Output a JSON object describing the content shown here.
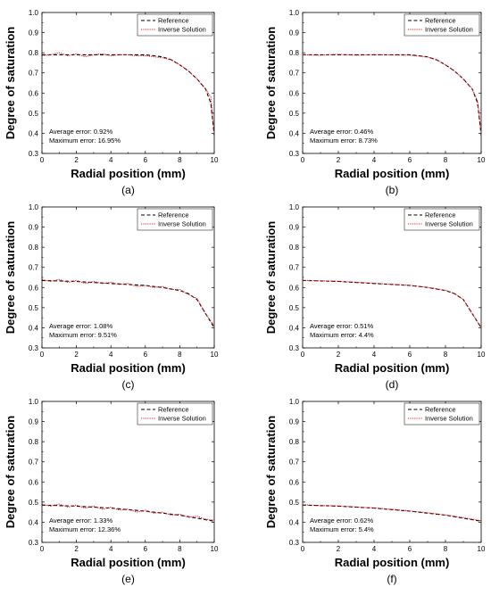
{
  "chart_data": [
    {
      "type": "line",
      "caption": "(a)",
      "xlabel": "Radial position (mm)",
      "ylabel": "Degree of saturation",
      "xlim": [
        0,
        10
      ],
      "ylim": [
        0.3,
        1.0
      ],
      "xticks": [
        0,
        2,
        4,
        6,
        8,
        10
      ],
      "yticks": [
        0.3,
        0.4,
        0.5,
        0.6,
        0.7,
        0.8,
        0.9,
        1.0
      ],
      "legend": {
        "position": "top-right",
        "entries": [
          "Reference",
          "Inverse Solution"
        ]
      },
      "annotations": [
        "Average error: 0.92%",
        "Maximum error: 16.95%"
      ],
      "series": [
        {
          "name": "Reference",
          "color": "#000000",
          "style": "dashed",
          "x": [
            0,
            2,
            4,
            6,
            6.5,
            7,
            7.5,
            8,
            8.5,
            9,
            9.5,
            9.8,
            10
          ],
          "y": [
            0.79,
            0.79,
            0.79,
            0.79,
            0.785,
            0.78,
            0.765,
            0.74,
            0.71,
            0.67,
            0.62,
            0.55,
            0.39
          ]
        },
        {
          "name": "Inverse Solution",
          "color": "#e8191a",
          "style": "dotted",
          "x": [
            0,
            0.5,
            1,
            1.5,
            2,
            2.5,
            3,
            3.5,
            4,
            4.5,
            5,
            5.5,
            6,
            6.5,
            7,
            7.5,
            8,
            8.5,
            9,
            9.5,
            9.8,
            10
          ],
          "y": [
            0.785,
            0.79,
            0.8,
            0.785,
            0.795,
            0.78,
            0.79,
            0.795,
            0.785,
            0.79,
            0.79,
            0.785,
            0.785,
            0.78,
            0.775,
            0.765,
            0.74,
            0.71,
            0.67,
            0.62,
            0.58,
            0.4
          ]
        }
      ]
    },
    {
      "type": "line",
      "caption": "(b)",
      "xlabel": "Radial position (mm)",
      "ylabel": "Degree of saturation",
      "xlim": [
        0,
        10
      ],
      "ylim": [
        0.3,
        1.0
      ],
      "xticks": [
        0,
        2,
        4,
        6,
        8,
        10
      ],
      "yticks": [
        0.3,
        0.4,
        0.5,
        0.6,
        0.7,
        0.8,
        0.9,
        1.0
      ],
      "legend": {
        "position": "top-right",
        "entries": [
          "Reference",
          "Inverse Solution"
        ]
      },
      "annotations": [
        "Average error: 0.46%",
        "Maximum error: 8.73%"
      ],
      "series": [
        {
          "name": "Reference",
          "color": "#000000",
          "style": "dashed",
          "x": [
            0,
            2,
            4,
            6,
            6.5,
            7,
            7.5,
            8,
            8.5,
            9,
            9.5,
            9.8,
            10
          ],
          "y": [
            0.79,
            0.79,
            0.79,
            0.79,
            0.785,
            0.78,
            0.765,
            0.74,
            0.71,
            0.67,
            0.62,
            0.55,
            0.39
          ]
        },
        {
          "name": "Inverse Solution",
          "color": "#e8191a",
          "style": "dotted",
          "x": [
            0,
            1,
            2,
            3,
            4,
            5,
            6,
            6.5,
            7,
            7.5,
            8,
            8.5,
            9,
            9.5,
            9.8,
            10
          ],
          "y": [
            0.79,
            0.788,
            0.792,
            0.788,
            0.79,
            0.789,
            0.788,
            0.784,
            0.778,
            0.765,
            0.74,
            0.71,
            0.67,
            0.62,
            0.56,
            0.4
          ]
        }
      ]
    },
    {
      "type": "line",
      "caption": "(c)",
      "xlabel": "Radial position (mm)",
      "ylabel": "Degree of saturation",
      "xlim": [
        0,
        10
      ],
      "ylim": [
        0.3,
        1.0
      ],
      "xticks": [
        0,
        2,
        4,
        6,
        8,
        10
      ],
      "yticks": [
        0.3,
        0.4,
        0.5,
        0.6,
        0.7,
        0.8,
        0.9,
        1.0
      ],
      "legend": {
        "position": "top-right",
        "entries": [
          "Reference",
          "Inverse Solution"
        ]
      },
      "annotations": [
        "Average error: 1.08%",
        "Maximum error: 9.51%"
      ],
      "series": [
        {
          "name": "Reference",
          "color": "#000000",
          "style": "dashed",
          "x": [
            0,
            2,
            4,
            6,
            7,
            8,
            8.5,
            9,
            9.5,
            10
          ],
          "y": [
            0.635,
            0.63,
            0.62,
            0.61,
            0.6,
            0.585,
            0.57,
            0.54,
            0.47,
            0.4
          ]
        },
        {
          "name": "Inverse Solution",
          "color": "#e8191a",
          "style": "dotted",
          "x": [
            0,
            0.5,
            1,
            1.5,
            2,
            2.5,
            3,
            3.5,
            4,
            4.5,
            5,
            5.5,
            6,
            6.5,
            7,
            7.5,
            8,
            8.5,
            9,
            9.5,
            10
          ],
          "y": [
            0.64,
            0.63,
            0.64,
            0.625,
            0.635,
            0.62,
            0.63,
            0.62,
            0.625,
            0.615,
            0.62,
            0.605,
            0.61,
            0.6,
            0.605,
            0.59,
            0.59,
            0.565,
            0.545,
            0.47,
            0.41
          ]
        }
      ]
    },
    {
      "type": "line",
      "caption": "(d)",
      "xlabel": "Radial position (mm)",
      "ylabel": "Degree of saturation",
      "xlim": [
        0,
        10
      ],
      "ylim": [
        0.3,
        1.0
      ],
      "xticks": [
        0,
        2,
        4,
        6,
        8,
        10
      ],
      "yticks": [
        0.3,
        0.4,
        0.5,
        0.6,
        0.7,
        0.8,
        0.9,
        1.0
      ],
      "legend": {
        "position": "top-right",
        "entries": [
          "Reference",
          "Inverse Solution"
        ]
      },
      "annotations": [
        "Average error: 0.51%",
        "Maximum error: 4.4%"
      ],
      "series": [
        {
          "name": "Reference",
          "color": "#000000",
          "style": "dashed",
          "x": [
            0,
            2,
            4,
            6,
            7,
            8,
            8.5,
            9,
            9.5,
            10
          ],
          "y": [
            0.635,
            0.63,
            0.62,
            0.61,
            0.6,
            0.585,
            0.57,
            0.54,
            0.47,
            0.4
          ]
        },
        {
          "name": "Inverse Solution",
          "color": "#e8191a",
          "style": "dotted",
          "x": [
            0,
            1,
            2,
            3,
            4,
            5,
            6,
            7,
            8,
            8.5,
            9,
            9.5,
            10
          ],
          "y": [
            0.636,
            0.633,
            0.631,
            0.626,
            0.621,
            0.616,
            0.611,
            0.601,
            0.586,
            0.57,
            0.54,
            0.47,
            0.402
          ]
        }
      ]
    },
    {
      "type": "line",
      "caption": "(e)",
      "xlabel": "Radial position (mm)",
      "ylabel": "Degree of saturation",
      "xlim": [
        0,
        10
      ],
      "ylim": [
        0.3,
        1.0
      ],
      "xticks": [
        0,
        2,
        4,
        6,
        8,
        10
      ],
      "yticks": [
        0.3,
        0.4,
        0.5,
        0.6,
        0.7,
        0.8,
        0.9,
        1.0
      ],
      "legend": {
        "position": "top-right",
        "entries": [
          "Reference",
          "Inverse Solution"
        ]
      },
      "annotations": [
        "Average error: 1.33%",
        "Maximum error: 12.36%"
      ],
      "series": [
        {
          "name": "Reference",
          "color": "#000000",
          "style": "dashed",
          "x": [
            0,
            2,
            4,
            6,
            8,
            10
          ],
          "y": [
            0.485,
            0.48,
            0.47,
            0.455,
            0.435,
            0.405
          ]
        },
        {
          "name": "Inverse Solution",
          "color": "#e8191a",
          "style": "dotted",
          "x": [
            0,
            0.5,
            1,
            1.5,
            2,
            2.5,
            3,
            3.5,
            4,
            4.5,
            5,
            5.5,
            6,
            6.5,
            7,
            7.5,
            8,
            8.5,
            9,
            9.5,
            10
          ],
          "y": [
            0.49,
            0.48,
            0.49,
            0.475,
            0.485,
            0.47,
            0.48,
            0.465,
            0.475,
            0.46,
            0.465,
            0.45,
            0.46,
            0.445,
            0.45,
            0.435,
            0.44,
            0.425,
            0.43,
            0.415,
            0.41
          ]
        }
      ]
    },
    {
      "type": "line",
      "caption": "(f)",
      "xlabel": "Radial position (mm)",
      "ylabel": "Degree of saturation",
      "xlim": [
        0,
        10
      ],
      "ylim": [
        0.3,
        1.0
      ],
      "xticks": [
        0,
        2,
        4,
        6,
        8,
        10
      ],
      "yticks": [
        0.3,
        0.4,
        0.5,
        0.6,
        0.7,
        0.8,
        0.9,
        1.0
      ],
      "legend": {
        "position": "top-right",
        "entries": [
          "Reference",
          "Inverse Solution"
        ]
      },
      "annotations": [
        "Average error: 0.62%",
        "Maximum error: 5.4%"
      ],
      "series": [
        {
          "name": "Reference",
          "color": "#000000",
          "style": "dashed",
          "x": [
            0,
            2,
            4,
            6,
            8,
            10
          ],
          "y": [
            0.485,
            0.48,
            0.47,
            0.455,
            0.435,
            0.405
          ]
        },
        {
          "name": "Inverse Solution",
          "color": "#e8191a",
          "style": "dotted",
          "x": [
            0,
            1,
            2,
            3,
            4,
            5,
            6,
            7,
            8,
            9,
            10
          ],
          "y": [
            0.487,
            0.483,
            0.481,
            0.476,
            0.471,
            0.464,
            0.456,
            0.447,
            0.436,
            0.423,
            0.407
          ]
        }
      ]
    }
  ]
}
